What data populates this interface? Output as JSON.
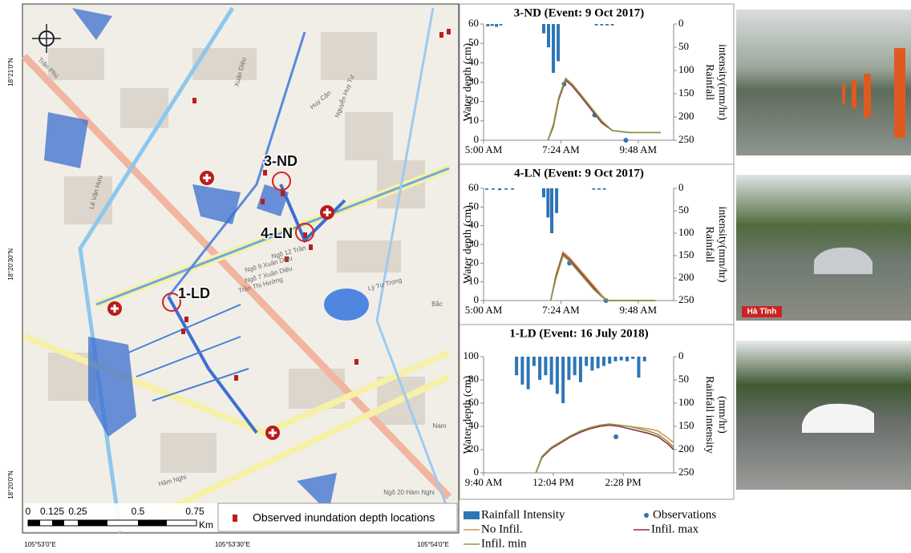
{
  "chart_data": [
    {
      "type": "combo",
      "title": "3-ND (Event: 9 Oct 2017)",
      "ylabel": "Water depth (cm)",
      "y2label": [
        "Rainfall",
        "intensity(mm/hr)"
      ],
      "xlim": [
        300,
        654
      ],
      "xticks": [
        {
          "value": 300,
          "label": "5:00 AM"
        },
        {
          "value": 444,
          "label": "7:24 AM"
        },
        {
          "value": 588,
          "label": "9:48 AM"
        }
      ],
      "ylim": [
        0,
        60
      ],
      "yticks": [
        0,
        10,
        20,
        30,
        40,
        50,
        60
      ],
      "y2lim": [
        0,
        250
      ],
      "y2ticks": [
        0,
        50,
        100,
        150,
        200,
        250
      ],
      "y2_inverted": true,
      "series": [
        {
          "name": "Rainfall Intensity",
          "type": "bar",
          "axis": "y2",
          "color": "#2e75b6",
          "x": [
            308,
            316,
            324,
            332,
            412,
            421,
            430,
            439,
            510,
            520,
            530,
            540
          ],
          "values": [
            5,
            4,
            6,
            3,
            20,
            50,
            105,
            80,
            3,
            3,
            3,
            3
          ]
        },
        {
          "name": "Observations",
          "type": "scatter",
          "color": "#2e75b6",
          "x": [
            450,
            507,
            565
          ],
          "values": [
            29,
            13,
            0
          ]
        },
        {
          "name": "No Infil.",
          "type": "line",
          "color": "#d9964e",
          "x": [
            420,
            430,
            440,
            453,
            465,
            480,
            500,
            520,
            540,
            570,
            600,
            630
          ],
          "values": [
            0,
            8,
            22,
            32,
            29,
            24,
            17,
            10,
            5,
            4,
            4,
            4
          ]
        },
        {
          "name": "Infil. max",
          "type": "line",
          "color": "#8e2f3f",
          "x": [
            420,
            430,
            440,
            453,
            465,
            480,
            500,
            520,
            540,
            570,
            600,
            630
          ],
          "values": [
            0,
            7,
            21,
            31,
            28,
            23,
            16,
            9,
            5,
            4,
            4,
            4
          ]
        },
        {
          "name": "Infil. min",
          "type": "line",
          "color": "#8a9a4a",
          "x": [
            420,
            430,
            440,
            453,
            465,
            480,
            500,
            520,
            540,
            570,
            600,
            630
          ],
          "values": [
            0,
            8,
            22,
            32,
            29,
            24,
            17,
            10,
            5,
            4,
            4,
            4
          ]
        }
      ]
    },
    {
      "type": "combo",
      "title": "4-LN (Event: 9 Oct 2017)",
      "ylabel": "Water depth (cm)",
      "y2label": [
        "Rainfall",
        "intensity(mm/hr)"
      ],
      "xlim": [
        300,
        654
      ],
      "xticks": [
        {
          "value": 300,
          "label": "5:00 AM"
        },
        {
          "value": 444,
          "label": "7:24 AM"
        },
        {
          "value": 588,
          "label": "9:48 AM"
        }
      ],
      "ylim": [
        0,
        60
      ],
      "yticks": [
        0,
        10,
        20,
        30,
        40,
        50,
        60
      ],
      "y2lim": [
        0,
        250
      ],
      "y2ticks": [
        0,
        50,
        100,
        150,
        200,
        250
      ],
      "y2_inverted": true,
      "series": [
        {
          "name": "Rainfall Intensity",
          "type": "bar",
          "axis": "y2",
          "color": "#2e75b6",
          "x": [
            306,
            318,
            330,
            342,
            354,
            412,
            420,
            427,
            436,
            505,
            515,
            525
          ],
          "values": [
            3,
            3,
            4,
            3,
            3,
            20,
            65,
            100,
            55,
            3,
            3,
            3
          ]
        },
        {
          "name": "Observations",
          "type": "scatter",
          "color": "#2e75b6",
          "x": [
            460,
            528
          ],
          "values": [
            20,
            0
          ]
        },
        {
          "name": "No Infil.",
          "type": "line",
          "color": "#d9964e",
          "x": [
            425,
            435,
            448,
            460,
            475,
            490,
            505,
            520,
            530,
            560,
            620
          ],
          "values": [
            0,
            14,
            26,
            23,
            18,
            13,
            8,
            3,
            0,
            0,
            0
          ]
        },
        {
          "name": "Infil. max",
          "type": "line",
          "color": "#8e2f3f",
          "x": [
            425,
            435,
            448,
            460,
            475,
            490,
            505,
            520,
            530,
            560,
            620
          ],
          "values": [
            0,
            13,
            25,
            22,
            17,
            12,
            7,
            2,
            0,
            0,
            0
          ]
        },
        {
          "name": "Infil. min",
          "type": "line",
          "color": "#8a9a4a",
          "x": [
            425,
            435,
            448,
            460,
            475,
            490,
            505,
            520,
            530,
            560,
            620
          ],
          "values": [
            0,
            12,
            24,
            21,
            16,
            11,
            6,
            2,
            0,
            0,
            0
          ]
        }
      ]
    },
    {
      "type": "combo",
      "title": "1-LD (Event: 16 July 2018)",
      "ylabel": "Water depth (cm)",
      "y2label": [
        "Rainfall intensity",
        "(mm/hr)"
      ],
      "xlim": [
        580,
        972
      ],
      "xticks": [
        {
          "value": 580,
          "label": "9:40 AM"
        },
        {
          "value": 724,
          "label": "12:04 PM"
        },
        {
          "value": 868,
          "label": "2:28 PM"
        }
      ],
      "ylim": [
        0,
        100
      ],
      "yticks": [
        0,
        20,
        40,
        60,
        80,
        100
      ],
      "y2lim": [
        0,
        250
      ],
      "y2ticks": [
        0,
        50,
        100,
        150,
        200,
        250
      ],
      "y2_inverted": true,
      "series": [
        {
          "name": "Rainfall Intensity",
          "type": "bar",
          "axis": "y2",
          "color": "#2e75b6",
          "x": [
            648,
            660,
            672,
            684,
            696,
            708,
            720,
            732,
            744,
            756,
            768,
            780,
            792,
            804,
            816,
            828,
            840,
            852,
            864,
            876,
            888,
            900,
            912
          ],
          "values": [
            40,
            60,
            70,
            20,
            50,
            40,
            60,
            80,
            100,
            50,
            40,
            55,
            20,
            30,
            25,
            20,
            15,
            10,
            8,
            10,
            5,
            45,
            10
          ]
        },
        {
          "name": "Observations",
          "type": "scatter",
          "color": "#2e75b6",
          "x": [
            853
          ],
          "values": [
            31
          ]
        },
        {
          "name": "No Infil.",
          "type": "line",
          "color": "#d9964e",
          "x": [
            688,
            700,
            720,
            740,
            760,
            780,
            800,
            820,
            840,
            860,
            880,
            900,
            920,
            940,
            960,
            972
          ],
          "values": [
            0,
            14,
            22,
            27,
            32,
            36,
            39,
            41,
            42,
            41,
            40,
            39,
            38,
            36,
            30,
            26
          ]
        },
        {
          "name": "Infil. max",
          "type": "line",
          "color": "#8e2f3f",
          "x": [
            688,
            700,
            720,
            740,
            760,
            780,
            800,
            820,
            840,
            860,
            880,
            900,
            920,
            940,
            960,
            972
          ],
          "values": [
            0,
            13,
            21,
            26,
            31,
            35,
            38,
            40,
            41,
            40,
            38,
            36,
            34,
            31,
            25,
            20
          ]
        },
        {
          "name": "Infil. min",
          "type": "line",
          "color": "#8a9a4a",
          "x": [
            688,
            700,
            720,
            740,
            760,
            780,
            800,
            820,
            840,
            860,
            880,
            900,
            920,
            940,
            960,
            972
          ],
          "values": [
            0,
            14,
            22,
            27,
            32,
            36,
            39,
            41,
            42,
            41,
            40,
            38,
            36,
            33,
            27,
            22
          ]
        }
      ]
    }
  ],
  "map": {
    "site_labels": [
      "3-ND",
      "4-LN",
      "1-LD"
    ],
    "scale_labels": [
      "0",
      "0.125",
      "0.25",
      "0.5",
      "0.75"
    ],
    "scale_unit": "Km",
    "legend": "Observed inundation depth locations",
    "lat_labels": [
      "18°21'0\"N",
      "18°20'30\"N",
      "18°20'0\"N"
    ],
    "lon_labels": [
      "105°53'0\"E",
      "105°53'30\"E",
      "105°54'0\"E"
    ],
    "street_labels": [
      "Lê Văn Hưu",
      "Trần Phú",
      "Xuân Diệu",
      "Huy Cận",
      "Nguyễn Huy Tự",
      "Lý Tự Trọng",
      "Hàm Nghi",
      "Ngõ 12 Trần",
      "Ngõ 9 Xuân Diệu",
      "Ngõ 7 Xuân Diệu",
      "Trần Thị Hường",
      "Ngõ 20 Hàm Nghi",
      "Bắc",
      "Nam"
    ]
  },
  "photo_watermarks": [
    "Hà Tĩnh"
  ]
}
